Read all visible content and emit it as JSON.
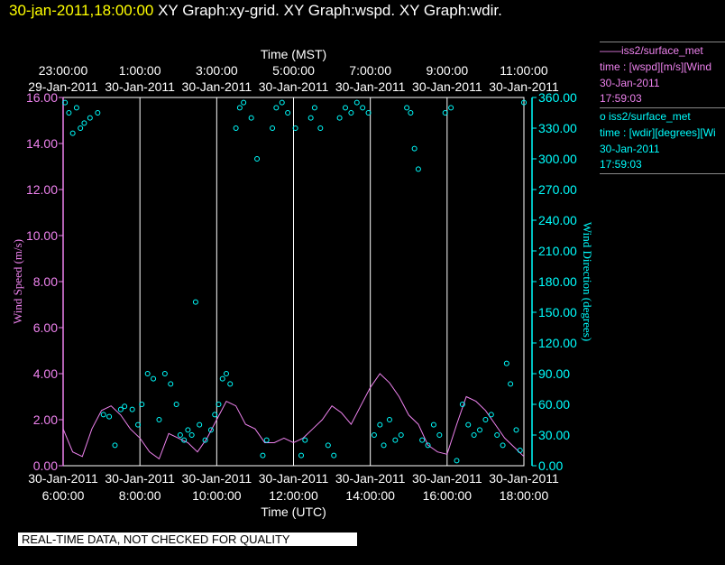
{
  "header": {
    "timestamp": "30-jan-2011,18:00:00",
    "graphs": "  XY Graph:xy-grid.  XY Graph:wspd.  XY Graph:wdir."
  },
  "legend": [
    {
      "line1": "——iss2/surface_met",
      "line2": "time : [wspd][m/s][Wind",
      "line3": "30-Jan-2011",
      "line4": "17:59:03",
      "color": "#ee82ee"
    },
    {
      "line1": "o  iss2/surface_met",
      "line2": "time : [wdir][degrees][Wi",
      "line3": "30-Jan-2011",
      "line4": "17:59:03",
      "color": "#00ffff"
    }
  ],
  "footer": "REAL-TIME DATA, NOT CHECKED FOR QUALITY",
  "chart_data": {
    "type": "line",
    "colors": {
      "wspd": "#ee82ee",
      "wdir": "#00ffff",
      "grid": "#ffffff"
    },
    "top_axis": {
      "label": "Time (MST)",
      "ticks": [
        {
          "x": 0,
          "time": "23:00:00",
          "date": "29-Jan-2011"
        },
        {
          "x": 2,
          "time": "1:00:00",
          "date": "30-Jan-2011"
        },
        {
          "x": 4,
          "time": "3:00:00",
          "date": "30-Jan-2011"
        },
        {
          "x": 6,
          "time": "5:00:00",
          "date": "30-Jan-2011"
        },
        {
          "x": 8,
          "time": "7:00:00",
          "date": "30-Jan-2011"
        },
        {
          "x": 10,
          "time": "9:00:00",
          "date": "30-Jan-2011"
        },
        {
          "x": 12,
          "time": "11:00:00",
          "date": "30-Jan-2011"
        }
      ]
    },
    "bottom_axis": {
      "label": "Time (UTC)",
      "ticks": [
        {
          "x": 0,
          "date": "30-Jan-2011",
          "time": "6:00:00"
        },
        {
          "x": 2,
          "date": "30-Jan-2011",
          "time": "8:00:00"
        },
        {
          "x": 4,
          "date": "30-Jan-2011",
          "time": "10:00:00"
        },
        {
          "x": 6,
          "date": "30-Jan-2011",
          "time": "12:00:00"
        },
        {
          "x": 8,
          "date": "30-Jan-2011",
          "time": "14:00:00"
        },
        {
          "x": 10,
          "date": "30-Jan-2011",
          "time": "16:00:00"
        },
        {
          "x": 12,
          "date": "30-Jan-2011",
          "time": "18:00:00"
        }
      ]
    },
    "xlim": [
      0,
      12
    ],
    "y_left": {
      "label": "Wind Speed (m/s)",
      "ylim": [
        0,
        16
      ],
      "ticks": [
        "0.00",
        "2.00",
        "4.00",
        "6.00",
        "8.00",
        "10.00",
        "12.00",
        "14.00",
        "16.00"
      ]
    },
    "y_right": {
      "label": "Wind Direction (degrees)",
      "ylim": [
        0,
        360
      ],
      "ticks": [
        "0.00",
        "30.00",
        "60.00",
        "90.00",
        "120.00",
        "150.00",
        "180.00",
        "210.00",
        "240.00",
        "270.00",
        "300.00",
        "330.00",
        "360.00"
      ]
    },
    "series": [
      {
        "name": "iss2/surface_met time : [wspd][m/s]",
        "axis": "left",
        "x": [
          0,
          0.25,
          0.5,
          0.75,
          1,
          1.25,
          1.5,
          1.75,
          2,
          2.25,
          2.5,
          2.75,
          3,
          3.25,
          3.5,
          3.75,
          4,
          4.25,
          4.5,
          4.75,
          5,
          5.25,
          5.5,
          5.75,
          6,
          6.25,
          6.5,
          6.75,
          7,
          7.25,
          7.5,
          7.75,
          8,
          8.25,
          8.5,
          8.75,
          9,
          9.25,
          9.5,
          9.75,
          10,
          10.25,
          10.5,
          10.75,
          11,
          11.25,
          11.5,
          11.75,
          12
        ],
        "values": [
          1.6,
          0.6,
          0.4,
          1.6,
          2.4,
          2.6,
          2.2,
          1.6,
          1.2,
          0.6,
          0.3,
          1.4,
          1.2,
          1.0,
          0.6,
          1.2,
          2.0,
          2.8,
          2.6,
          1.8,
          1.6,
          1.0,
          1.0,
          1.2,
          1.0,
          1.2,
          1.6,
          2.0,
          2.6,
          2.3,
          1.8,
          2.6,
          3.4,
          4.0,
          3.6,
          3.0,
          2.2,
          1.8,
          0.9,
          0.6,
          0.5,
          1.8,
          3.0,
          2.8,
          2.4,
          1.8,
          1.2,
          0.8,
          0.4
        ]
      },
      {
        "name": "iss2/surface_met time : [wdir][degrees]",
        "axis": "right",
        "x": [
          0.05,
          0.15,
          0.25,
          0.35,
          0.45,
          0.55,
          0.7,
          0.9,
          1.05,
          1.2,
          1.35,
          1.5,
          1.6,
          1.8,
          1.95,
          2.05,
          2.2,
          2.35,
          2.5,
          2.65,
          2.8,
          2.95,
          3.05,
          3.15,
          3.25,
          3.35,
          3.45,
          3.55,
          3.7,
          3.85,
          3.95,
          4.05,
          4.15,
          4.25,
          4.35,
          4.5,
          4.6,
          4.7,
          4.9,
          5.05,
          5.2,
          5.3,
          5.45,
          5.55,
          5.7,
          5.85,
          6.05,
          6.2,
          6.3,
          6.45,
          6.55,
          6.7,
          6.9,
          7.05,
          7.2,
          7.35,
          7.5,
          7.65,
          7.8,
          7.95,
          8.1,
          8.25,
          8.35,
          8.5,
          8.65,
          8.8,
          8.95,
          9.05,
          9.15,
          9.25,
          9.35,
          9.5,
          9.65,
          9.8,
          9.95,
          10.1,
          10.25,
          10.4,
          10.55,
          10.7,
          10.85,
          11.0,
          11.15,
          11.3,
          11.45,
          11.55,
          11.65,
          11.8,
          11.9,
          12.0
        ],
        "values": [
          355,
          345,
          325,
          350,
          330,
          335,
          340,
          345,
          50,
          48,
          20,
          55,
          58,
          55,
          40,
          60,
          90,
          85,
          45,
          90,
          80,
          60,
          30,
          25,
          35,
          30,
          160,
          40,
          25,
          35,
          50,
          60,
          85,
          90,
          80,
          330,
          350,
          355,
          340,
          300,
          10,
          25,
          330,
          350,
          355,
          345,
          330,
          10,
          25,
          340,
          350,
          330,
          20,
          10,
          340,
          350,
          345,
          355,
          350,
          345,
          30,
          40,
          20,
          45,
          25,
          30,
          350,
          345,
          310,
          290,
          25,
          20,
          40,
          30,
          345,
          350,
          5,
          60,
          40,
          30,
          35,
          45,
          50,
          30,
          20,
          100,
          80,
          35,
          15,
          355
        ]
      }
    ]
  }
}
